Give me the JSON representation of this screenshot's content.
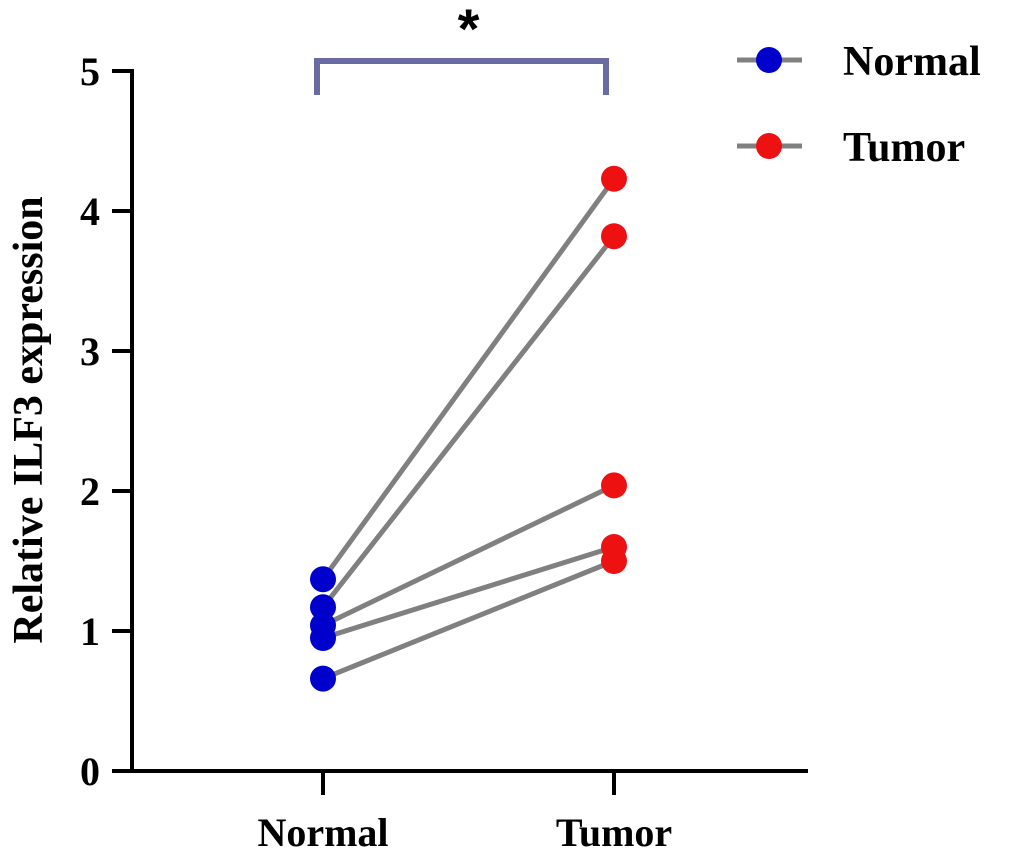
{
  "chart_data": {
    "type": "scatter",
    "subtype": "paired-line",
    "title": "",
    "xlabel": "",
    "ylabel": "Relative ILF3 expression",
    "ylim": [
      0,
      5
    ],
    "yticks": [
      "0",
      "1",
      "2",
      "3",
      "4",
      "5"
    ],
    "categories": [
      "Normal",
      "Tumor"
    ],
    "series": [
      {
        "name": "Normal",
        "color": "#0000cc",
        "values": [
          0.66,
          0.95,
          1.04,
          1.17,
          1.37
        ]
      },
      {
        "name": "Tumor",
        "color": "#ee1111",
        "values": [
          1.5,
          1.6,
          2.04,
          3.82,
          4.23
        ]
      }
    ],
    "pairs": [
      [
        1.37,
        4.23
      ],
      [
        1.17,
        3.82
      ],
      [
        1.04,
        2.04
      ],
      [
        0.95,
        1.6
      ],
      [
        0.66,
        1.5
      ]
    ],
    "pair_line_color": "#808080",
    "significance": {
      "label": "*",
      "between": [
        "Normal",
        "Tumor"
      ],
      "bracket_color": "#6b6ba3"
    },
    "legend": {
      "placement": "top-right",
      "entries": [
        {
          "label": "Normal",
          "color": "#0000cc"
        },
        {
          "label": "Tumor",
          "color": "#ee1111"
        }
      ]
    }
  }
}
